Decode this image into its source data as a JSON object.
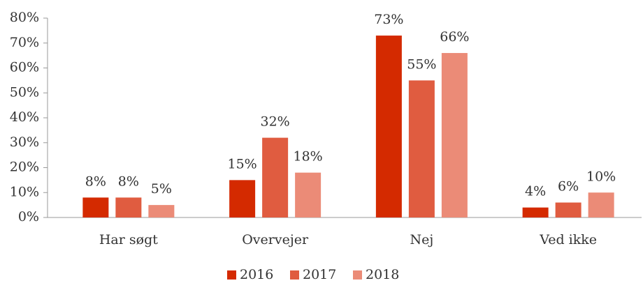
{
  "chart_data": {
    "type": "bar",
    "categories": [
      "Har søgt",
      "Overvejer",
      "Nej",
      "Ved ikke"
    ],
    "series": [
      {
        "name": "2016",
        "color": "#d42a00",
        "values": [
          8,
          15,
          73,
          4
        ],
        "value_labels": [
          "8%",
          "15%",
          "73%",
          "4%"
        ]
      },
      {
        "name": "2017",
        "color": "#e05c40",
        "values": [
          8,
          32,
          55,
          6
        ],
        "value_labels": [
          "8%",
          "32%",
          "55%",
          "6%"
        ]
      },
      {
        "name": "2018",
        "color": "#eb8b77",
        "values": [
          5,
          18,
          66,
          10
        ],
        "value_labels": [
          "5%",
          "18%",
          "66%",
          "10%"
        ]
      }
    ],
    "ylim": [
      0,
      80
    ],
    "yticks": [
      {
        "value": 0,
        "label": "0%"
      },
      {
        "value": 10,
        "label": "10%"
      },
      {
        "value": 20,
        "label": "20%"
      },
      {
        "value": 30,
        "label": "30%"
      },
      {
        "value": 40,
        "label": "40%"
      },
      {
        "value": 50,
        "label": "50%"
      },
      {
        "value": 60,
        "label": "60%"
      },
      {
        "value": 70,
        "label": "70%"
      },
      {
        "value": 80,
        "label": "80%"
      }
    ],
    "legend": "bottom"
  }
}
